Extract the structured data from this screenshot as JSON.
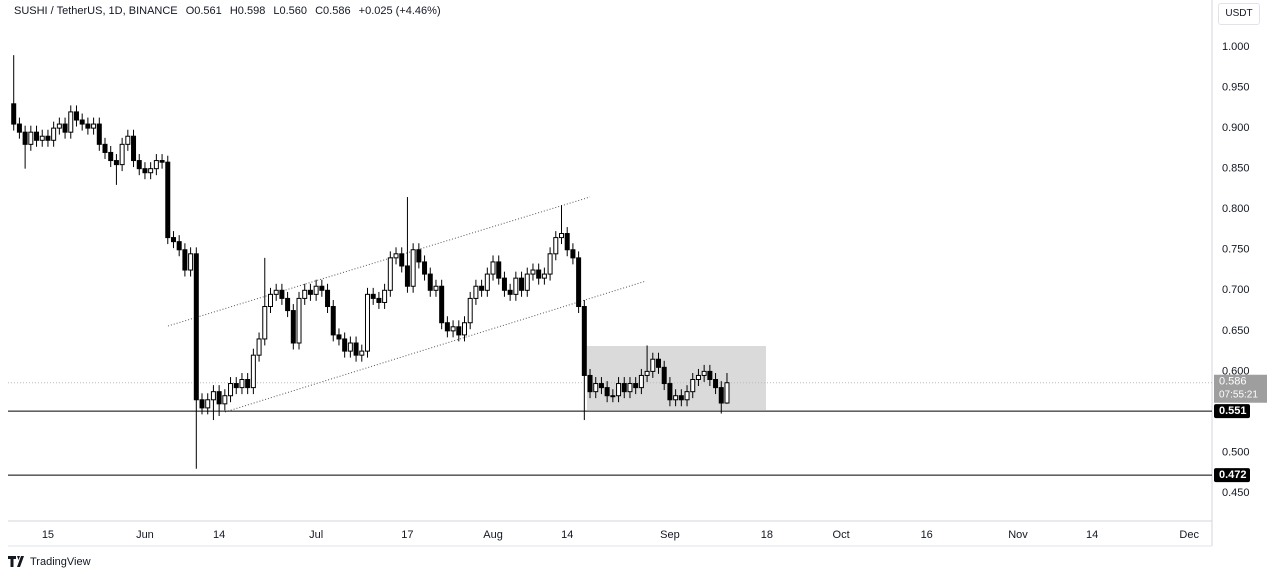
{
  "header": {
    "symbol": "SUSHI / TetherUS, 1D, BINANCE",
    "open": "O0.561",
    "high": "H0.598",
    "low": "L0.560",
    "close": "C0.586",
    "change": "+0.025 (+4.46%)",
    "currency_button": "USDT"
  },
  "footer": {
    "brand": "TradingView"
  },
  "chart_data": {
    "type": "candlestick",
    "x": [
      "05-09",
      "05-10",
      "05-11",
      "05-12",
      "05-13",
      "05-14",
      "05-15",
      "05-16",
      "05-17",
      "05-18",
      "05-19",
      "05-20",
      "05-21",
      "05-22",
      "05-23",
      "05-24",
      "05-25",
      "05-26",
      "05-27",
      "05-28",
      "05-29",
      "05-30",
      "05-31",
      "06-01",
      "06-02",
      "06-03",
      "06-04",
      "06-05",
      "06-06",
      "06-07",
      "06-08",
      "06-09",
      "06-10",
      "06-11",
      "06-12",
      "06-13",
      "06-14",
      "06-15",
      "06-16",
      "06-17",
      "06-18",
      "06-19",
      "06-20",
      "06-21",
      "06-22",
      "06-23",
      "06-24",
      "06-25",
      "06-26",
      "06-27",
      "06-28",
      "06-29",
      "06-30",
      "07-01",
      "07-02",
      "07-03",
      "07-04",
      "07-05",
      "07-06",
      "07-07",
      "07-08",
      "07-09",
      "07-10",
      "07-11",
      "07-12",
      "07-13",
      "07-14",
      "07-15",
      "07-16",
      "07-17",
      "07-18",
      "07-19",
      "07-20",
      "07-21",
      "07-22",
      "07-23",
      "07-24",
      "07-25",
      "07-26",
      "07-27",
      "07-28",
      "07-29",
      "07-30",
      "07-31",
      "08-01",
      "08-02",
      "08-03",
      "08-04",
      "08-05",
      "08-06",
      "08-07",
      "08-08",
      "08-09",
      "08-10",
      "08-11",
      "08-12",
      "08-13",
      "08-14",
      "08-15",
      "08-16",
      "08-17",
      "08-18",
      "08-19",
      "08-20",
      "08-21",
      "08-22",
      "08-23",
      "08-24",
      "08-25",
      "08-26",
      "08-27",
      "08-28",
      "08-29",
      "08-30",
      "08-31",
      "09-01",
      "09-02",
      "09-03",
      "09-04",
      "09-05",
      "09-06",
      "09-07",
      "09-08",
      "09-09",
      "09-10",
      "09-11"
    ],
    "open": [
      0.93,
      0.905,
      0.895,
      0.88,
      0.895,
      0.885,
      0.89,
      0.885,
      0.9,
      0.905,
      0.895,
      0.92,
      0.91,
      0.905,
      0.9,
      0.905,
      0.88,
      0.87,
      0.86,
      0.855,
      0.88,
      0.89,
      0.86,
      0.85,
      0.845,
      0.85,
      0.86,
      0.858,
      0.765,
      0.76,
      0.75,
      0.725,
      0.745,
      0.565,
      0.555,
      0.565,
      0.575,
      0.56,
      0.57,
      0.585,
      0.58,
      0.59,
      0.58,
      0.62,
      0.64,
      0.68,
      0.695,
      0.7,
      0.69,
      0.675,
      0.635,
      0.69,
      0.7,
      0.695,
      0.705,
      0.7,
      0.68,
      0.645,
      0.64,
      0.625,
      0.635,
      0.62,
      0.625,
      0.695,
      0.69,
      0.685,
      0.7,
      0.74,
      0.745,
      0.73,
      0.705,
      0.75,
      0.735,
      0.72,
      0.7,
      0.705,
      0.66,
      0.65,
      0.655,
      0.645,
      0.66,
      0.69,
      0.705,
      0.7,
      0.72,
      0.735,
      0.715,
      0.7,
      0.695,
      0.715,
      0.7,
      0.72,
      0.725,
      0.715,
      0.72,
      0.745,
      0.765,
      0.77,
      0.75,
      0.74,
      0.68,
      0.595,
      0.575,
      0.585,
      0.58,
      0.57,
      0.57,
      0.585,
      0.575,
      0.585,
      0.58,
      0.595,
      0.6,
      0.615,
      0.605,
      0.585,
      0.565,
      0.57,
      0.565,
      0.575,
      0.59,
      0.595,
      0.6,
      0.59,
      0.58,
      0.561
    ],
    "high": [
      0.99,
      0.913,
      0.903,
      0.903,
      0.903,
      0.898,
      0.898,
      0.908,
      0.913,
      0.913,
      0.928,
      0.928,
      0.918,
      0.913,
      0.913,
      0.913,
      0.888,
      0.878,
      0.868,
      0.888,
      0.898,
      0.898,
      0.868,
      0.858,
      0.858,
      0.868,
      0.868,
      0.866,
      0.773,
      0.768,
      0.758,
      0.753,
      0.753,
      0.573,
      0.573,
      0.583,
      0.583,
      0.578,
      0.593,
      0.593,
      0.598,
      0.598,
      0.628,
      0.648,
      0.74,
      0.703,
      0.708,
      0.708,
      0.698,
      0.683,
      0.698,
      0.708,
      0.708,
      0.713,
      0.713,
      0.708,
      0.688,
      0.653,
      0.648,
      0.643,
      0.643,
      0.633,
      0.703,
      0.703,
      0.698,
      0.708,
      0.748,
      0.753,
      0.753,
      0.815,
      0.758,
      0.758,
      0.743,
      0.728,
      0.713,
      0.713,
      0.668,
      0.663,
      0.663,
      0.668,
      0.698,
      0.713,
      0.713,
      0.728,
      0.743,
      0.743,
      0.723,
      0.708,
      0.723,
      0.723,
      0.728,
      0.733,
      0.733,
      0.728,
      0.753,
      0.773,
      0.805,
      0.778,
      0.758,
      0.748,
      0.688,
      0.603,
      0.593,
      0.593,
      0.588,
      0.578,
      0.593,
      0.593,
      0.593,
      0.593,
      0.603,
      0.632,
      0.623,
      0.623,
      0.613,
      0.593,
      0.578,
      0.578,
      0.583,
      0.598,
      0.603,
      0.608,
      0.608,
      0.598,
      0.588,
      0.598
    ],
    "low": [
      0.897,
      0.887,
      0.85,
      0.872,
      0.877,
      0.877,
      0.877,
      0.877,
      0.892,
      0.887,
      0.887,
      0.902,
      0.897,
      0.892,
      0.892,
      0.872,
      0.862,
      0.852,
      0.83,
      0.847,
      0.872,
      0.852,
      0.842,
      0.837,
      0.837,
      0.842,
      0.85,
      0.757,
      0.752,
      0.742,
      0.717,
      0.717,
      0.48,
      0.547,
      0.547,
      0.54,
      0.545,
      0.552,
      0.562,
      0.572,
      0.572,
      0.572,
      0.572,
      0.612,
      0.632,
      0.672,
      0.687,
      0.682,
      0.667,
      0.627,
      0.627,
      0.682,
      0.687,
      0.687,
      0.692,
      0.672,
      0.637,
      0.632,
      0.617,
      0.617,
      0.612,
      0.612,
      0.617,
      0.682,
      0.677,
      0.677,
      0.692,
      0.732,
      0.722,
      0.697,
      0.697,
      0.727,
      0.712,
      0.692,
      0.692,
      0.652,
      0.642,
      0.642,
      0.637,
      0.637,
      0.652,
      0.682,
      0.692,
      0.692,
      0.712,
      0.707,
      0.692,
      0.687,
      0.687,
      0.692,
      0.692,
      0.712,
      0.707,
      0.707,
      0.712,
      0.737,
      0.757,
      0.742,
      0.732,
      0.672,
      0.54,
      0.567,
      0.567,
      0.572,
      0.562,
      0.562,
      0.562,
      0.567,
      0.567,
      0.572,
      0.572,
      0.587,
      0.592,
      0.597,
      0.577,
      0.557,
      0.557,
      0.557,
      0.557,
      0.567,
      0.582,
      0.587,
      0.582,
      0.572,
      0.548,
      0.56
    ],
    "close": [
      0.905,
      0.895,
      0.88,
      0.895,
      0.885,
      0.89,
      0.885,
      0.9,
      0.905,
      0.895,
      0.92,
      0.91,
      0.905,
      0.9,
      0.905,
      0.88,
      0.87,
      0.86,
      0.855,
      0.88,
      0.89,
      0.86,
      0.85,
      0.845,
      0.85,
      0.86,
      0.858,
      0.765,
      0.76,
      0.75,
      0.725,
      0.745,
      0.565,
      0.555,
      0.565,
      0.575,
      0.56,
      0.57,
      0.585,
      0.58,
      0.59,
      0.58,
      0.62,
      0.64,
      0.68,
      0.695,
      0.7,
      0.69,
      0.675,
      0.635,
      0.69,
      0.7,
      0.695,
      0.705,
      0.7,
      0.68,
      0.645,
      0.64,
      0.625,
      0.635,
      0.62,
      0.625,
      0.695,
      0.69,
      0.685,
      0.7,
      0.74,
      0.745,
      0.73,
      0.705,
      0.75,
      0.735,
      0.72,
      0.7,
      0.705,
      0.66,
      0.65,
      0.655,
      0.645,
      0.66,
      0.69,
      0.705,
      0.7,
      0.72,
      0.735,
      0.715,
      0.7,
      0.695,
      0.715,
      0.7,
      0.72,
      0.725,
      0.715,
      0.72,
      0.745,
      0.765,
      0.77,
      0.75,
      0.74,
      0.68,
      0.595,
      0.575,
      0.585,
      0.58,
      0.57,
      0.57,
      0.585,
      0.575,
      0.585,
      0.58,
      0.595,
      0.6,
      0.615,
      0.605,
      0.585,
      0.565,
      0.57,
      0.565,
      0.575,
      0.59,
      0.595,
      0.6,
      0.59,
      0.58,
      0.561,
      0.586
    ],
    "up_color": "#ffffff",
    "down_color": "#000000",
    "border_color": "#000000",
    "xlim": [
      "05-08",
      "12-05"
    ],
    "xticks": [
      {
        "value": "05-15",
        "label": "15"
      },
      {
        "value": "06-01",
        "label": "Jun"
      },
      {
        "value": "06-14",
        "label": "14"
      },
      {
        "value": "07-01",
        "label": "Jul"
      },
      {
        "value": "07-17",
        "label": "17"
      },
      {
        "value": "08-01",
        "label": "Aug"
      },
      {
        "value": "08-14",
        "label": "14"
      },
      {
        "value": "09-01",
        "label": "Sep"
      },
      {
        "value": "09-18",
        "label": "18"
      },
      {
        "value": "10-01",
        "label": "Oct"
      },
      {
        "value": "10-16",
        "label": "16"
      },
      {
        "value": "11-01",
        "label": "Nov"
      },
      {
        "value": "11-14",
        "label": "14"
      },
      {
        "value": "12-01",
        "label": "Dec"
      }
    ],
    "ylim": [
      0.4155,
      1.058
    ],
    "yticks": [
      {
        "value": 1,
        "label": "1.000"
      },
      {
        "value": 0.95,
        "label": "0.950"
      },
      {
        "value": 0.9,
        "label": "0.900"
      },
      {
        "value": 0.85,
        "label": "0.850"
      },
      {
        "value": 0.8,
        "label": "0.800"
      },
      {
        "value": 0.75,
        "label": "0.750"
      },
      {
        "value": 0.7,
        "label": "0.700"
      },
      {
        "value": 0.65,
        "label": "0.650"
      },
      {
        "value": 0.6,
        "label": "0.600"
      },
      {
        "value": 0.5,
        "label": "0.500"
      },
      {
        "value": 0.45,
        "label": "0.450"
      }
    ],
    "grid": false,
    "levels": [
      {
        "value": 0.551,
        "label": "0.551"
      },
      {
        "value": 0.472,
        "label": "0.472"
      }
    ],
    "last_price": {
      "value": 0.586,
      "label": "0.586",
      "countdown": "07:55:21"
    }
  }
}
